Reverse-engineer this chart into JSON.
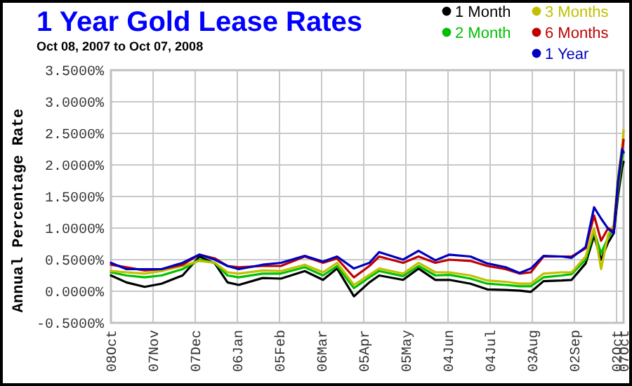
{
  "chart_data": {
    "type": "line",
    "title": "1 Year Gold Lease Rates",
    "subtitle": "Oct 08, 2007 to Oct 07, 2008",
    "ylabel": "Annual Percentage Rate",
    "x": [
      "2007-10-08",
      "2007-10-19",
      "2007-11-01",
      "2007-11-13",
      "2007-11-28",
      "2007-12-10",
      "2007-12-21",
      "2007-12-30",
      "2008-01-07",
      "2008-01-24",
      "2008-02-06",
      "2008-02-23",
      "2008-03-07",
      "2008-03-17",
      "2008-03-29",
      "2008-04-09",
      "2008-04-16",
      "2008-05-03",
      "2008-05-14",
      "2008-05-26",
      "2008-06-05",
      "2008-06-20",
      "2008-07-02",
      "2008-07-15",
      "2008-07-25",
      "2008-08-02",
      "2008-08-11",
      "2008-08-24",
      "2008-08-31",
      "2008-09-10",
      "2008-09-16",
      "2008-09-21",
      "2008-09-26",
      "2008-09-30",
      "2008-10-03",
      "2008-10-06",
      "2008-10-07"
    ],
    "series": [
      {
        "name": "1 Month",
        "color": "#000000",
        "values": [
          0.25,
          0.14,
          0.07,
          0.12,
          0.25,
          0.55,
          0.44,
          0.14,
          0.1,
          0.21,
          0.2,
          0.32,
          0.18,
          0.36,
          -0.08,
          0.14,
          0.25,
          0.18,
          0.36,
          0.18,
          0.18,
          0.12,
          0.03,
          0.02,
          0.01,
          -0.01,
          0.16,
          0.17,
          0.18,
          0.44,
          0.88,
          0.5,
          0.77,
          0.92,
          1.5,
          1.96,
          2.05
        ]
      },
      {
        "name": "2 Month",
        "color": "#00c000",
        "values": [
          0.3,
          0.25,
          0.22,
          0.25,
          0.35,
          0.5,
          0.45,
          0.25,
          0.22,
          0.28,
          0.28,
          0.38,
          0.25,
          0.4,
          0.05,
          0.22,
          0.32,
          0.24,
          0.4,
          0.25,
          0.26,
          0.2,
          0.12,
          0.1,
          0.08,
          0.08,
          0.22,
          0.25,
          0.27,
          0.5,
          0.95,
          0.6,
          0.85,
          1.0,
          1.6,
          2.1,
          2.2
        ]
      },
      {
        "name": "3 Months",
        "color": "#c0c000",
        "values": [
          0.32,
          0.3,
          0.28,
          0.32,
          0.4,
          0.48,
          0.45,
          0.3,
          0.28,
          0.33,
          0.32,
          0.42,
          0.3,
          0.45,
          0.1,
          0.26,
          0.36,
          0.28,
          0.45,
          0.3,
          0.3,
          0.25,
          0.17,
          0.15,
          0.12,
          0.12,
          0.28,
          0.3,
          0.3,
          0.55,
          1.0,
          0.35,
          0.9,
          1.05,
          1.8,
          2.3,
          2.55
        ]
      },
      {
        "name": "6 Months",
        "color": "#c00000",
        "values": [
          0.42,
          0.38,
          0.33,
          0.35,
          0.42,
          0.58,
          0.52,
          0.4,
          0.38,
          0.4,
          0.4,
          0.55,
          0.45,
          0.52,
          0.22,
          0.4,
          0.55,
          0.45,
          0.55,
          0.45,
          0.5,
          0.48,
          0.4,
          0.35,
          0.28,
          0.3,
          0.55,
          0.55,
          0.55,
          0.68,
          1.2,
          0.8,
          1.0,
          0.95,
          1.7,
          2.2,
          2.4
        ]
      },
      {
        "name": "1 Year",
        "color": "#0000c0",
        "values": [
          0.45,
          0.35,
          0.35,
          0.35,
          0.45,
          0.58,
          0.5,
          0.4,
          0.35,
          0.42,
          0.45,
          0.56,
          0.47,
          0.55,
          0.36,
          0.45,
          0.62,
          0.5,
          0.64,
          0.49,
          0.58,
          0.55,
          0.44,
          0.38,
          0.29,
          0.36,
          0.56,
          0.55,
          0.53,
          0.7,
          1.33,
          1.15,
          0.99,
          0.92,
          1.73,
          2.25,
          2.2
        ]
      }
    ],
    "xlim": [
      "2007-10-08",
      "2008-10-07"
    ],
    "xticks": [
      {
        "value": "2007-10-08",
        "label": "08Oct"
      },
      {
        "value": "2007-11-07",
        "label": "07Nov"
      },
      {
        "value": "2007-12-07",
        "label": "07Dec"
      },
      {
        "value": "2008-01-06",
        "label": "06Jan"
      },
      {
        "value": "2008-02-05",
        "label": "05Feb"
      },
      {
        "value": "2008-03-06",
        "label": "06Mar"
      },
      {
        "value": "2008-04-05",
        "label": "05Apr"
      },
      {
        "value": "2008-05-05",
        "label": "05May"
      },
      {
        "value": "2008-06-04",
        "label": "04Jun"
      },
      {
        "value": "2008-07-04",
        "label": "04Jul"
      },
      {
        "value": "2008-08-03",
        "label": "03Aug"
      },
      {
        "value": "2008-09-02",
        "label": "02Sep"
      },
      {
        "value": "2008-10-02",
        "label": "02Oct"
      },
      {
        "value": "2008-10-07",
        "label": "07Oct"
      }
    ],
    "ylim": [
      -0.5,
      3.5
    ],
    "yticks": [
      {
        "value": -0.5,
        "label": "-0.5000%"
      },
      {
        "value": 0,
        "label": "0.0000%"
      },
      {
        "value": 0.5,
        "label": "0.5000%"
      },
      {
        "value": 1,
        "label": "1.0000%"
      },
      {
        "value": 1.5,
        "label": "1.5000%"
      },
      {
        "value": 2,
        "label": "2.0000%"
      },
      {
        "value": 2.5,
        "label": "2.5000%"
      },
      {
        "value": 3,
        "label": "3.0000%"
      },
      {
        "value": 3.5,
        "label": "3.5000%"
      }
    ],
    "grid": true,
    "legend": "top right",
    "marker": "none",
    "line_style": "solid"
  }
}
